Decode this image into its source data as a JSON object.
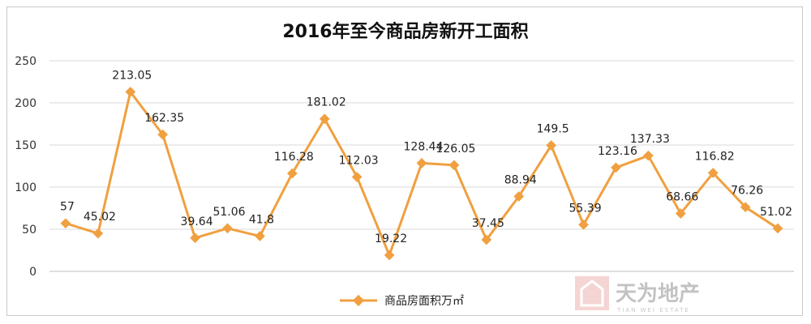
{
  "chart_data": {
    "type": "line",
    "title": "2016年至今商品房新开工面积",
    "xlabel": "",
    "ylabel": "",
    "ylim": [
      0,
      250
    ],
    "yticks": [
      0,
      50,
      100,
      150,
      200,
      250
    ],
    "grid": true,
    "legend_position": "bottom",
    "series": [
      {
        "name": "商品房面积万㎡",
        "color": "#f0a040",
        "values": [
          57,
          45.02,
          213.05,
          162.35,
          39.64,
          51.06,
          41.8,
          116.28,
          181.02,
          112.03,
          19.22,
          128.44,
          126.05,
          37.45,
          88.94,
          149.5,
          55.39,
          123.16,
          137.33,
          68.66,
          116.82,
          76.26,
          51.02
        ],
        "labels": [
          "57",
          "45.02",
          "213.05",
          "162.35",
          "39.64",
          "51.06",
          "41.8",
          "116.28",
          "181.02",
          "112.03",
          "19.22",
          "128.44",
          "126.05",
          "37.45",
          "88.94",
          "149.5",
          "55.39",
          "123.16",
          "137.33",
          "68.66",
          "116.82",
          "76.26",
          "51.02"
        ]
      }
    ]
  },
  "watermark": {
    "text": "天为地产",
    "subtext": "TIAN WEI ESTATE",
    "icon": "house-logo-icon",
    "color": "#c2c2c2"
  }
}
